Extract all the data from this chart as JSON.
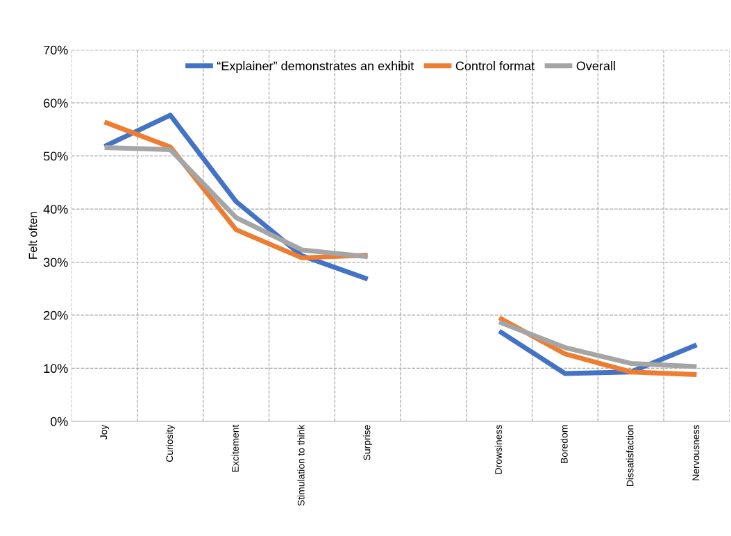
{
  "chart_data": {
    "type": "line",
    "ylabel": "Felt often",
    "categories": [
      "Joy",
      "Curiosity",
      "Excitement",
      "Stimulation to think",
      "Surprise",
      null,
      "Drowsiness",
      "Boredom",
      "Dissatisfaction",
      "Nervousness"
    ],
    "series": [
      {
        "name": "“Explainer” demonstrates an exhibit",
        "color": "#4472c4",
        "values": [
          51.8,
          57.7,
          41.4,
          31.2,
          26.8,
          null,
          17.0,
          9.0,
          9.3,
          14.4
        ]
      },
      {
        "name": "Control format",
        "color": "#ed7d31",
        "values": [
          56.4,
          51.7,
          36.1,
          30.8,
          31.3,
          null,
          19.5,
          12.7,
          9.3,
          8.8
        ]
      },
      {
        "name": "Overall",
        "color": "#a5a5a5",
        "values": [
          51.6,
          51.2,
          38.4,
          32.3,
          31.0,
          null,
          18.7,
          13.9,
          10.9,
          10.3
        ]
      }
    ],
    "ylim": [
      0,
      70
    ],
    "yticks": [
      {
        "value": 0,
        "label": "0%"
      },
      {
        "value": 10,
        "label": "10%"
      },
      {
        "value": 20,
        "label": "20%"
      },
      {
        "value": 30,
        "label": "30%"
      },
      {
        "value": 40,
        "label": "40%"
      },
      {
        "value": 50,
        "label": "50%"
      },
      {
        "value": 60,
        "label": "60%"
      },
      {
        "value": 70,
        "label": "70%"
      }
    ],
    "grid": true,
    "legend": "top",
    "marker": "none",
    "line_style": "solid"
  }
}
